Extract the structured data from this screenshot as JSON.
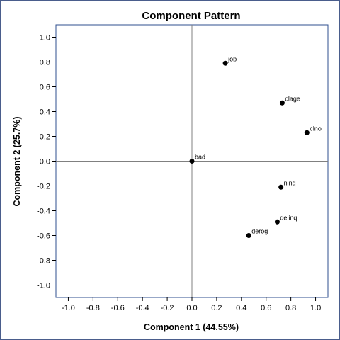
{
  "chart_data": {
    "type": "scatter",
    "title": "Component Pattern",
    "xlabel": "Component 1 (44.55%)",
    "ylabel": "Component 2 (25.7%)",
    "xlim": [
      -1.1,
      1.1
    ],
    "ylim": [
      -1.1,
      1.1
    ],
    "xticks": [
      "-1.0",
      "-0.8",
      "-0.6",
      "-0.4",
      "-0.2",
      "0.0",
      "0.2",
      "0.4",
      "0.6",
      "0.8",
      "1.0"
    ],
    "yticks": [
      "1.0",
      "0.8",
      "0.6",
      "0.4",
      "0.2",
      "0.0",
      "-0.2",
      "-0.4",
      "-0.6",
      "-0.8",
      "-1.0"
    ],
    "reference_lines": {
      "x": 0,
      "y": 0
    },
    "grid": false,
    "points": [
      {
        "label": "job",
        "x": 0.27,
        "y": 0.79
      },
      {
        "label": "clage",
        "x": 0.73,
        "y": 0.47
      },
      {
        "label": "clno",
        "x": 0.93,
        "y": 0.23
      },
      {
        "label": "bad",
        "x": 0.0,
        "y": 0.0
      },
      {
        "label": "ninq",
        "x": 0.72,
        "y": -0.21
      },
      {
        "label": "delinq",
        "x": 0.69,
        "y": -0.49
      },
      {
        "label": "derog",
        "x": 0.46,
        "y": -0.6
      }
    ],
    "colors": {
      "frame": "#2f4f8f",
      "reference": "#808080",
      "marker": "#000000"
    }
  }
}
